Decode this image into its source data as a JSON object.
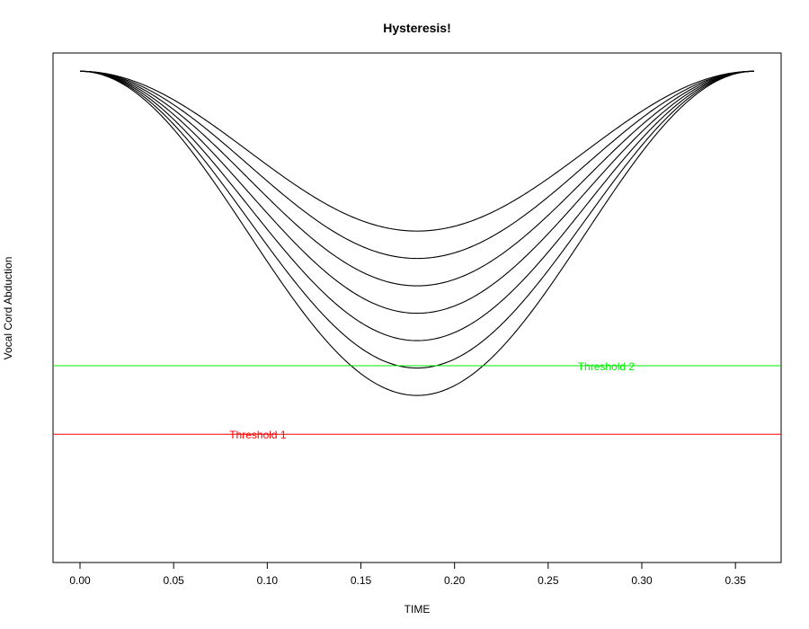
{
  "chart_data": {
    "type": "line",
    "title": "Hysteresis!",
    "xlabel": "TIME",
    "ylabel": "Vocal Cord Abduction",
    "xlim": [
      -0.0144,
      0.3744
    ],
    "ylim": [
      -0.076,
      1.04
    ],
    "x_ticks": [
      0.0,
      0.05,
      0.1,
      0.15,
      0.2,
      0.25,
      0.3,
      0.35
    ],
    "x_tick_labels": [
      "0.00",
      "0.05",
      "0.10",
      "0.15",
      "0.20",
      "0.25",
      "0.30",
      "0.35"
    ],
    "y_axis_ticks_shown": false,
    "grid": false,
    "legend": "none",
    "curve_shape": "raised cosine: y = top - depth * (1 - cos(2*pi*t/0.36)) / 2",
    "top_value": 1.0,
    "series": [
      {
        "depth": 0.35,
        "colors": [
          "#000000"
        ]
      },
      {
        "depth": 0.41,
        "colors": [
          "#000000"
        ]
      },
      {
        "depth": 0.47,
        "colors": [
          "#000000"
        ]
      },
      {
        "depth": 0.53,
        "colors": [
          "#000000",
          "#ff0000"
        ]
      },
      {
        "depth": 0.59,
        "colors": [
          "#000000",
          "#ff0000"
        ]
      },
      {
        "depth": 0.65,
        "colors": [
          "#000000",
          "#ff0000"
        ]
      },
      {
        "depth": 0.71,
        "colors": [
          "#000000",
          "#ff0000"
        ]
      }
    ],
    "thresholds": [
      {
        "name": "Threshold 1",
        "value": 0.205,
        "color": "#ff0000",
        "label_x": 0.095
      },
      {
        "name": "Threshold 2",
        "value": 0.355,
        "color": "#00ee00",
        "label_x": 0.281
      }
    ],
    "notes": "Below Threshold 1 curves are drawn red dotted; between thresholds dark, above Threshold 2 solid black."
  }
}
